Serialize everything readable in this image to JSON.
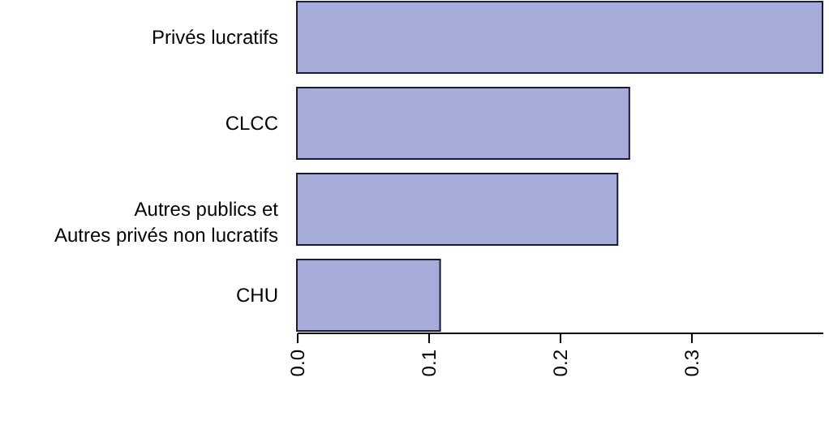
{
  "chart_data": {
    "type": "bar",
    "orientation": "horizontal",
    "categories": [
      "Privés lucratifs",
      "CLCC",
      "Autres publics et\nAutres privés non lucratifs",
      "CHU"
    ],
    "values": [
      0.4,
      0.253,
      0.244,
      0.109
    ],
    "color": "#a6acd9",
    "xlim": [
      0,
      0.4
    ],
    "xticks": [
      {
        "value": 0,
        "label": "0.0"
      },
      0.1,
      0.2,
      0.3
    ],
    "grid": false
  }
}
